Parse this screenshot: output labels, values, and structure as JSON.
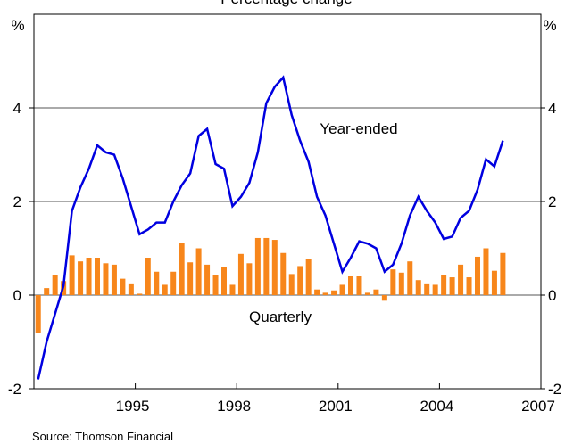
{
  "chart_data": {
    "type": "combo",
    "title": "Percentage change",
    "y_label": "%",
    "source": "Source: Thomson Financial",
    "x": [
      1992.125,
      1992.375,
      1992.625,
      1992.875,
      1993.125,
      1993.375,
      1993.625,
      1993.875,
      1994.125,
      1994.375,
      1994.625,
      1994.875,
      1995.125,
      1995.375,
      1995.625,
      1995.875,
      1996.125,
      1996.375,
      1996.625,
      1996.875,
      1997.125,
      1997.375,
      1997.625,
      1997.875,
      1998.125,
      1998.375,
      1998.625,
      1998.875,
      1999.125,
      1999.375,
      1999.625,
      1999.875,
      2000.125,
      2000.375,
      2000.625,
      2000.875,
      2001.125,
      2001.375,
      2001.625,
      2001.875,
      2002.125,
      2002.375,
      2002.625,
      2002.875,
      2003.125,
      2003.375,
      2003.625,
      2003.875,
      2004.125,
      2004.375,
      2004.625,
      2004.875,
      2005.125,
      2005.375,
      2005.625,
      2005.875
    ],
    "series": [
      {
        "name": "Quarterly",
        "type": "bar",
        "color": "#f7861b",
        "values": [
          -0.8,
          0.15,
          0.42,
          0.3,
          0.85,
          0.72,
          0.8,
          0.8,
          0.68,
          0.65,
          0.35,
          0.25,
          0.03,
          0.8,
          0.5,
          0.22,
          0.5,
          1.12,
          0.7,
          1.0,
          0.65,
          0.42,
          0.6,
          0.22,
          0.88,
          0.68,
          1.22,
          1.22,
          1.18,
          0.9,
          0.45,
          0.62,
          0.78,
          0.12,
          0.05,
          0.1,
          0.22,
          0.4,
          0.4,
          0.05,
          0.12,
          -0.12,
          0.55,
          0.48,
          0.72,
          0.32,
          0.25,
          0.22,
          0.42,
          0.38,
          0.65,
          0.38,
          0.82,
          1.0,
          0.52,
          0.9
        ]
      },
      {
        "name": "Year-ended",
        "type": "line",
        "color": "#0000e0",
        "values": [
          -1.8,
          -1.0,
          -0.4,
          0.2,
          1.8,
          2.3,
          2.7,
          3.2,
          3.05,
          3.0,
          2.5,
          1.9,
          1.3,
          1.4,
          1.55,
          1.55,
          2.0,
          2.35,
          2.6,
          3.4,
          3.55,
          2.8,
          2.7,
          1.9,
          2.1,
          2.4,
          3.05,
          4.1,
          4.45,
          4.65,
          3.85,
          3.3,
          2.85,
          2.1,
          1.7,
          1.1,
          0.5,
          0.8,
          1.15,
          1.1,
          1.0,
          0.5,
          0.65,
          1.1,
          1.7,
          2.1,
          1.8,
          1.55,
          1.2,
          1.25,
          1.65,
          1.8,
          2.25,
          2.9,
          2.75,
          3.3
        ]
      }
    ],
    "xlim": [
      1992,
      2007
    ],
    "xticks": [
      1995,
      1998,
      2001,
      2004,
      2007
    ],
    "ylim": [
      -2,
      6
    ],
    "yticks": [
      -2,
      0,
      2,
      4
    ],
    "grid": true
  }
}
